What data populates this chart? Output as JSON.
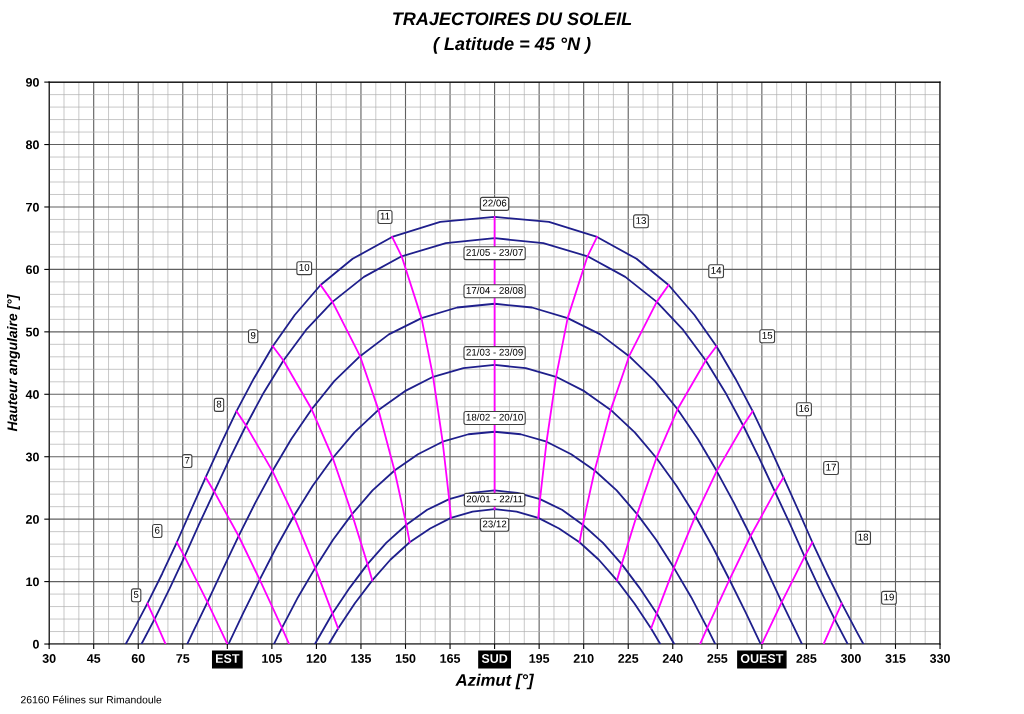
{
  "chart_data": {
    "type": "line",
    "title": "TRAJECTOIRES DU SOLEIL",
    "subtitle": "( Latitude = 45 °N )",
    "xlabel": "Azimut [°]",
    "ylabel": "Hauteur angulaire [°]",
    "xlim": [
      30,
      330
    ],
    "ylim": [
      0,
      90
    ],
    "xticks": [
      30,
      45,
      60,
      75,
      {
        "value": 90,
        "label": "EST"
      },
      105,
      120,
      135,
      150,
      165,
      {
        "value": 180,
        "label": "SUD"
      },
      195,
      210,
      225,
      240,
      255,
      {
        "value": 270,
        "label": "OUEST"
      },
      285,
      300,
      315,
      330
    ],
    "yticks": [
      0,
      10,
      20,
      30,
      40,
      50,
      60,
      70,
      80,
      90
    ],
    "grid": true,
    "legend": false,
    "marker": "none",
    "line_style": "solid",
    "series": [
      {
        "color": "#1f1f8c",
        "x": [
          55.8,
          58.0,
          63.1,
          68.1,
          73.0,
          77.8,
          82.7,
          87.8,
          93.1,
          98.9,
          105.3,
          112.7,
          121.4,
          132.2,
          145.5,
          161.7,
          180.0,
          198.3,
          214.5,
          227.8,
          238.6,
          247.3,
          254.7,
          261.1,
          266.9,
          272.2,
          277.3,
          282.2,
          287.0,
          291.9,
          296.9,
          302.0,
          304.2
        ],
        "values": [
          0,
          1.9,
          6.5,
          11.3,
          16.3,
          21.5,
          26.7,
          32.0,
          37.3,
          42.5,
          47.7,
          52.7,
          57.5,
          61.7,
          65.2,
          67.6,
          68.4,
          67.6,
          65.2,
          61.7,
          57.5,
          52.7,
          47.7,
          42.5,
          37.3,
          32.0,
          26.7,
          21.5,
          16.3,
          11.3,
          6.5,
          1.9,
          0
        ]
      },
      {
        "color": "#1f1f8c",
        "x": [
          61.1,
          65.5,
          70.6,
          75.6,
          80.5,
          85.6,
          90.8,
          96.3,
          102.3,
          108.9,
          116.5,
          125.4,
          136.0,
          148.7,
          163.6,
          180.0,
          196.4,
          211.3,
          224.0,
          234.6,
          243.5,
          251.1,
          257.7,
          263.7,
          269.2,
          274.4,
          279.5,
          284.4,
          289.4,
          294.5,
          298.9
        ],
        "values": [
          0,
          4.0,
          8.9,
          14.0,
          19.2,
          24.4,
          29.7,
          35.0,
          40.3,
          45.4,
          50.3,
          54.8,
          58.8,
          62.1,
          64.2,
          65.0,
          64.2,
          62.1,
          58.8,
          54.8,
          50.3,
          45.4,
          40.3,
          35.0,
          29.7,
          24.4,
          19.2,
          14.0,
          8.9,
          4.0,
          0
        ]
      },
      {
        "color": "#1f1f8c",
        "x": [
          76.5,
          78.0,
          83.3,
          88.5,
          93.8,
          99.4,
          105.2,
          111.5,
          118.4,
          126.0,
          134.7,
          144.4,
          155.4,
          167.4,
          180.0,
          192.6,
          204.6,
          215.6,
          225.3,
          234.0,
          241.6,
          248.5,
          254.8,
          260.6,
          266.2,
          271.5,
          276.7,
          282.0,
          283.5
        ],
        "values": [
          0,
          1.5,
          6.7,
          12.0,
          17.3,
          22.6,
          27.7,
          32.8,
          37.6,
          42.1,
          46.1,
          49.6,
          52.2,
          53.9,
          54.5,
          53.9,
          52.2,
          49.6,
          46.1,
          42.1,
          37.6,
          32.8,
          27.7,
          22.6,
          17.3,
          12.0,
          6.7,
          1.5,
          0
        ]
      },
      {
        "color": "#1f1f8c",
        "x": [
          90.4,
          95.5,
          100.9,
          106.5,
          112.4,
          118.7,
          125.5,
          132.8,
          140.9,
          149.8,
          159.3,
          169.5,
          180.0,
          190.5,
          200.7,
          210.2,
          219.1,
          227.2,
          234.5,
          241.3,
          247.6,
          253.5,
          259.1,
          264.5,
          269.6
        ],
        "values": [
          0,
          5.1,
          10.3,
          15.5,
          20.5,
          25.3,
          29.8,
          33.9,
          37.5,
          40.5,
          42.8,
          44.2,
          44.7,
          44.2,
          42.8,
          40.5,
          37.5,
          33.9,
          29.8,
          25.3,
          20.5,
          15.5,
          10.3,
          5.1,
          0
        ]
      },
      {
        "color": "#1f1f8c",
        "x": [
          105.7,
          108.4,
          113.8,
          119.6,
          125.6,
          132.0,
          138.9,
          146.3,
          154.2,
          162.5,
          171.2,
          180.0,
          188.8,
          197.5,
          205.8,
          213.7,
          221.1,
          228.0,
          234.4,
          240.4,
          246.2,
          251.6,
          254.3
        ],
        "values": [
          0,
          2.6,
          7.5,
          12.2,
          16.7,
          20.8,
          24.6,
          27.8,
          30.4,
          32.4,
          33.6,
          34.0,
          33.6,
          32.4,
          30.4,
          27.8,
          24.6,
          20.8,
          16.7,
          12.2,
          7.5,
          2.6,
          0
        ]
      },
      {
        "color": "#1f1f8c",
        "x": [
          119.5,
          120.0,
          125.4,
          131.2,
          137.2,
          143.5,
          150.3,
          157.3,
          164.7,
          172.3,
          180.0,
          187.7,
          195.3,
          202.7,
          209.7,
          216.5,
          222.8,
          228.8,
          234.6,
          240.0,
          240.5
        ],
        "values": [
          0,
          0.4,
          4.9,
          9.0,
          12.8,
          16.2,
          19.1,
          21.5,
          23.2,
          24.2,
          24.6,
          24.2,
          23.2,
          21.5,
          19.1,
          16.2,
          12.8,
          9.0,
          4.9,
          0.4,
          0
        ]
      },
      {
        "color": "#1f1f8c",
        "x": [
          124.2,
          127.3,
          132.9,
          138.8,
          144.9,
          151.4,
          158.3,
          165.3,
          172.6,
          180.0,
          187.4,
          194.7,
          201.7,
          208.6,
          215.1,
          221.2,
          227.1,
          232.7,
          235.8
        ],
        "values": [
          0,
          2.5,
          6.5,
          10.2,
          13.5,
          16.3,
          18.5,
          20.2,
          21.2,
          21.6,
          21.2,
          20.2,
          18.5,
          16.3,
          13.5,
          10.2,
          6.5,
          2.5,
          0
        ]
      },
      {
        "color": "#ff00ff",
        "x": [
          63.1,
          65.5,
          69.2
        ],
        "values": [
          6.5,
          4.0,
          0
        ]
      },
      {
        "color": "#ff00ff",
        "x": [
          73.0,
          75.6,
          83.3,
          90.0
        ],
        "values": [
          16.3,
          14.0,
          6.7,
          0
        ]
      },
      {
        "color": "#ff00ff",
        "x": [
          82.7,
          85.6,
          93.8,
          100.9,
          108.4,
          110.8
        ],
        "values": [
          26.7,
          24.4,
          17.3,
          10.3,
          2.6,
          0
        ]
      },
      {
        "color": "#ff00ff",
        "x": [
          93.1,
          96.3,
          105.2,
          112.4,
          119.6,
          125.4,
          127.3
        ],
        "values": [
          37.3,
          35.0,
          27.7,
          20.5,
          12.2,
          4.9,
          2.5
        ]
      },
      {
        "color": "#ff00ff",
        "x": [
          105.3,
          108.9,
          118.4,
          125.5,
          132.0,
          137.2,
          138.8
        ],
        "values": [
          47.7,
          45.4,
          37.6,
          29.8,
          20.8,
          12.8,
          10.2
        ]
      },
      {
        "color": "#ff00ff",
        "x": [
          121.4,
          125.4,
          134.7,
          140.9,
          146.3,
          150.3,
          151.4
        ],
        "values": [
          57.5,
          54.8,
          46.1,
          37.5,
          27.8,
          19.1,
          16.3
        ]
      },
      {
        "color": "#ff00ff",
        "x": [
          145.5,
          148.7,
          155.4,
          159.3,
          162.5,
          164.7,
          165.3
        ],
        "values": [
          65.2,
          62.1,
          52.2,
          42.8,
          32.4,
          23.2,
          20.2
        ]
      },
      {
        "color": "#ff00ff",
        "x": [
          180.0,
          180.0
        ],
        "values": [
          68.4,
          21.6
        ]
      },
      {
        "color": "#ff00ff",
        "x": [
          214.5,
          211.3,
          204.6,
          200.7,
          197.5,
          195.3,
          194.7
        ],
        "values": [
          65.2,
          62.1,
          52.2,
          42.8,
          32.4,
          23.2,
          20.2
        ]
      },
      {
        "color": "#ff00ff",
        "x": [
          238.6,
          234.6,
          225.3,
          219.1,
          213.7,
          209.7,
          208.6
        ],
        "values": [
          57.5,
          54.8,
          46.1,
          37.5,
          27.8,
          19.1,
          16.3
        ]
      },
      {
        "color": "#ff00ff",
        "x": [
          254.7,
          251.1,
          241.6,
          234.5,
          228.0,
          222.8,
          221.2
        ],
        "values": [
          47.7,
          45.4,
          37.6,
          29.8,
          20.8,
          12.8,
          10.2
        ]
      },
      {
        "color": "#ff00ff",
        "x": [
          266.9,
          263.7,
          254.8,
          247.6,
          240.4,
          234.6,
          232.7
        ],
        "values": [
          37.3,
          35.0,
          27.7,
          20.5,
          12.2,
          4.9,
          2.5
        ]
      },
      {
        "color": "#ff00ff",
        "x": [
          277.3,
          274.4,
          266.2,
          259.1,
          251.6,
          249.2
        ],
        "values": [
          26.7,
          24.4,
          17.3,
          10.3,
          2.6,
          0
        ]
      },
      {
        "color": "#ff00ff",
        "x": [
          287.0,
          284.4,
          276.7,
          270.0
        ],
        "values": [
          16.3,
          14.0,
          6.7,
          0
        ]
      },
      {
        "color": "#ff00ff",
        "x": [
          296.9,
          294.5,
          290.8
        ],
        "values": [
          6.5,
          4.0,
          0
        ]
      }
    ],
    "annotations": [
      {
        "text": "5",
        "x": 59.3,
        "y": 7.8
      },
      {
        "text": "6",
        "x": 66.4,
        "y": 18.1
      },
      {
        "text": "7",
        "x": 76.5,
        "y": 29.3
      },
      {
        "text": "8",
        "x": 87.2,
        "y": 38.3
      },
      {
        "text": "9",
        "x": 98.7,
        "y": 49.3
      },
      {
        "text": "10",
        "x": 115.9,
        "y": 60.2
      },
      {
        "text": "11",
        "x": 143.1,
        "y": 68.4
      },
      {
        "text": "13",
        "x": 229.3,
        "y": 67.7
      },
      {
        "text": "14",
        "x": 254.6,
        "y": 59.7
      },
      {
        "text": "15",
        "x": 271.8,
        "y": 49.3
      },
      {
        "text": "16",
        "x": 284.2,
        "y": 37.6
      },
      {
        "text": "17",
        "x": 293.3,
        "y": 28.2
      },
      {
        "text": "18",
        "x": 304.1,
        "y": 17.0
      },
      {
        "text": "19",
        "x": 312.8,
        "y": 7.4
      },
      {
        "text": "22/06",
        "x": 180,
        "y": 70.5
      },
      {
        "text": "21/05 - 23/07",
        "x": 180,
        "y": 62.6
      },
      {
        "text": "17/04 - 28/08",
        "x": 180,
        "y": 56.5
      },
      {
        "text": "21/03 - 23/09",
        "x": 180,
        "y": 46.6
      },
      {
        "text": "18/02 - 20/10",
        "x": 180,
        "y": 36.2
      },
      {
        "text": "20/01 - 22/11",
        "x": 180,
        "y": 23.1
      },
      {
        "text": "23/12",
        "x": 180,
        "y": 19.1
      },
      "26160 Félines sur Rimandoule"
    ]
  }
}
